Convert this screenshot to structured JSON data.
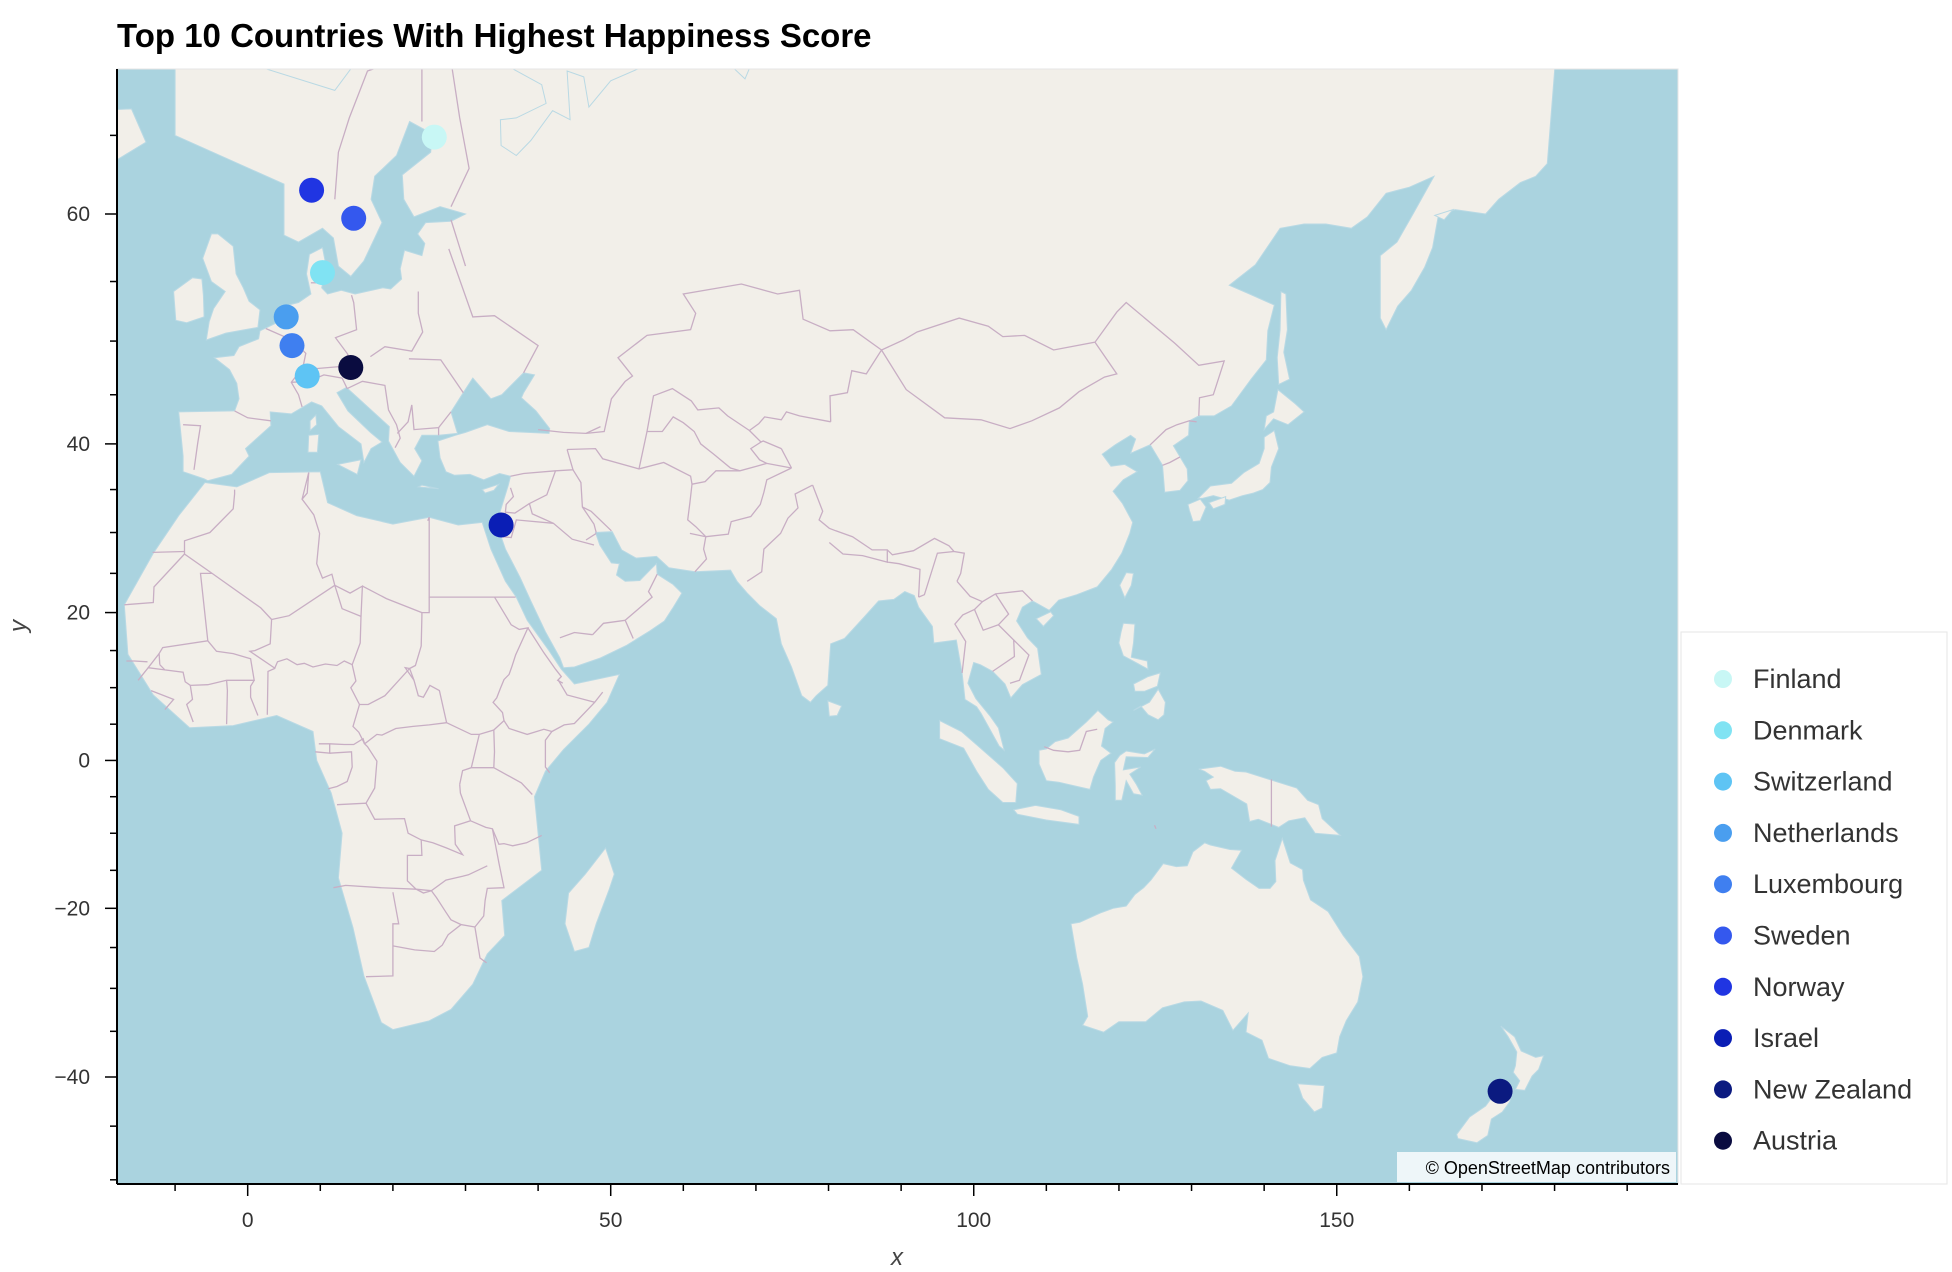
{
  "chart_data": {
    "type": "scatter",
    "title": "Top 10 Countries With Highest Happiness Score",
    "xlabel": "x",
    "ylabel": "y",
    "xlim": [
      -18,
      197
    ],
    "ylim": [
      -53,
      75
    ],
    "x_ticks": [
      0,
      50,
      100,
      150
    ],
    "y_ticks": [
      -40,
      -20,
      0,
      20,
      40,
      60
    ],
    "legend_position": "right",
    "basemap": "OpenStreetMap",
    "attribution": "© OpenStreetMap contributors",
    "series": [
      {
        "name": "Finland",
        "x": 25.7,
        "y": 64.9,
        "color": "#c8f7f5"
      },
      {
        "name": "Denmark",
        "x": 10.3,
        "y": 55.7,
        "color": "#80e3f3"
      },
      {
        "name": "Switzerland",
        "x": 8.2,
        "y": 46.8,
        "color": "#5ec4f4"
      },
      {
        "name": "Netherlands",
        "x": 5.3,
        "y": 52.1,
        "color": "#4a9eef"
      },
      {
        "name": "Luxembourg",
        "x": 6.1,
        "y": 49.6,
        "color": "#3f7ff0"
      },
      {
        "name": "Sweden",
        "x": 14.6,
        "y": 59.7,
        "color": "#3458ee"
      },
      {
        "name": "Norway",
        "x": 8.8,
        "y": 61.6,
        "color": "#2035e2"
      },
      {
        "name": "Israel",
        "x": 34.9,
        "y": 30.9,
        "color": "#0a1eb5"
      },
      {
        "name": "New Zealand",
        "x": 172.5,
        "y": -41.5,
        "color": "#0b1a80"
      },
      {
        "name": "Austria",
        "x": 14.2,
        "y": 47.6,
        "color": "#0a0c40"
      }
    ]
  },
  "colors": {
    "ocean": "#aad3df",
    "land": "#f2efe9",
    "border": "#c8aec4"
  }
}
